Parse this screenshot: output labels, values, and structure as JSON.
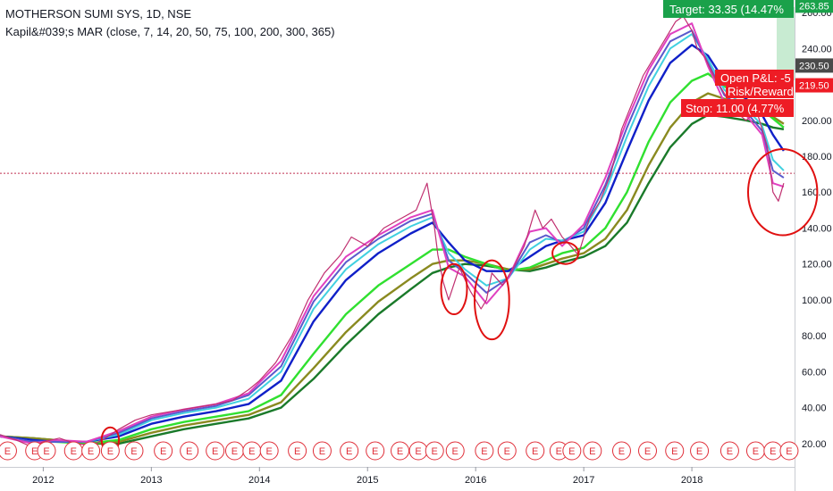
{
  "header": {
    "title": "MOTHERSON SUMI SYS, 1D, NSE",
    "indicator": "Kapil&#039;s MAR (close, 7, 14, 20, 50, 75, 100, 200, 300, 365)"
  },
  "colors": {
    "price": "#c03070",
    "ma7": "#e040c0",
    "ma14": "#5a5acc",
    "ma20": "#40d0e0",
    "ma50": "#1020c8",
    "ma100": "#30e030",
    "ma200": "#8a8a20",
    "ma365": "#1a7a2a",
    "annotation": "#e01010",
    "target_bg": "#1aa14a",
    "stop_bg": "#ee1c25",
    "last_price_bg": "#4a4a4a",
    "earnings": "#e0303a"
  },
  "chart_data": {
    "type": "line",
    "xlim": [
      2011.6,
      2018.95
    ],
    "ylim": [
      7,
      267
    ],
    "yticks": [
      20,
      40,
      60,
      80,
      100,
      120,
      140,
      160,
      180,
      200,
      220,
      240,
      260
    ],
    "ytick_labels": [
      "20.00",
      "40.00",
      "60.00",
      "80.00",
      "100.00",
      "120.00",
      "140.00",
      "160.00",
      "180.00",
      "200.00",
      "220.00",
      "240.00",
      "260.00"
    ],
    "xticks": [
      2012,
      2013,
      2014,
      2015,
      2016,
      2017,
      2018
    ],
    "xtick_labels": [
      "2012",
      "2013",
      "2014",
      "2015",
      "2016",
      "2017",
      "2018"
    ],
    "reference_line": 170.5,
    "price_labels": [
      {
        "text": "263.85",
        "value": 263.85,
        "style": "target"
      },
      {
        "text": "230.50",
        "value": 230.5,
        "style": "last"
      },
      {
        "text": "219.50",
        "value": 219.5,
        "style": "stop"
      }
    ],
    "position_labels": {
      "target": "Target: 33.35 (14.47%",
      "open_pl": "Open P&L: -5",
      "risk_reward": "Risk/Reward",
      "stop": "Stop: 11.00 (4.77%"
    },
    "earnings_marker": "E",
    "earnings_dates": [
      2011.67,
      2011.92,
      2012.03,
      2012.28,
      2012.44,
      2012.62,
      2012.84,
      2013.11,
      2013.35,
      2013.59,
      2013.77,
      2013.93,
      2014.09,
      2014.35,
      2014.58,
      2014.83,
      2015.07,
      2015.3,
      2015.47,
      2015.62,
      2015.81,
      2016.08,
      2016.29,
      2016.55,
      2016.77,
      2016.89,
      2017.08,
      2017.35,
      2017.59,
      2017.84,
      2018.07,
      2018.35,
      2018.59,
      2018.75,
      2018.9
    ],
    "series": [
      {
        "key": "price",
        "x": [
          2011.6,
          2011.75,
          2011.9,
          2012.0,
          2012.15,
          2012.3,
          2012.45,
          2012.55,
          2012.7,
          2012.85,
          2013.0,
          2013.2,
          2013.4,
          2013.6,
          2013.75,
          2013.9,
          2014.0,
          2014.15,
          2014.3,
          2014.45,
          2014.6,
          2014.75,
          2014.85,
          2015.0,
          2015.15,
          2015.3,
          2015.45,
          2015.55,
          2015.62,
          2015.65,
          2015.7,
          2015.75,
          2015.85,
          2015.95,
          2016.05,
          2016.1,
          2016.15,
          2016.25,
          2016.35,
          2016.45,
          2016.55,
          2016.62,
          2016.7,
          2016.8,
          2016.88,
          2016.95,
          2017.05,
          2017.15,
          2017.25,
          2017.35,
          2017.45,
          2017.55,
          2017.65,
          2017.75,
          2017.85,
          2017.92,
          2018.0,
          2018.05,
          2018.12,
          2018.2,
          2018.3,
          2018.4,
          2018.5,
          2018.6,
          2018.7,
          2018.75,
          2018.8,
          2018.85
        ],
        "values": [
          25,
          22,
          18,
          21,
          23,
          20,
          19,
          22,
          28,
          33,
          36,
          38,
          40,
          42,
          44,
          50,
          55,
          65,
          80,
          100,
          115,
          125,
          135,
          130,
          140,
          145,
          150,
          165,
          140,
          125,
          110,
          100,
          118,
          105,
          95,
          100,
          115,
          108,
          118,
          130,
          150,
          140,
          145,
          135,
          130,
          125,
          145,
          155,
          170,
          195,
          210,
          225,
          235,
          245,
          255,
          258,
          250,
          240,
          235,
          225,
          215,
          205,
          200,
          205,
          185,
          160,
          155,
          165
        ]
      },
      {
        "key": "ma7",
        "x": [
          2011.6,
          2011.9,
          2012.1,
          2012.4,
          2012.7,
          2013.0,
          2013.3,
          2013.6,
          2013.9,
          2014.2,
          2014.5,
          2014.8,
          2015.1,
          2015.4,
          2015.6,
          2015.75,
          2015.9,
          2016.1,
          2016.3,
          2016.5,
          2016.65,
          2016.8,
          2017.0,
          2017.2,
          2017.4,
          2017.6,
          2017.8,
          2018.0,
          2018.15,
          2018.3,
          2018.5,
          2018.65,
          2018.75,
          2018.85
        ],
        "values": [
          24,
          20,
          22,
          21,
          27,
          35,
          39,
          42,
          48,
          66,
          102,
          124,
          136,
          146,
          150,
          118,
          113,
          98,
          112,
          138,
          140,
          130,
          142,
          168,
          200,
          228,
          248,
          254,
          230,
          210,
          203,
          192,
          165,
          163
        ]
      },
      {
        "key": "ma14",
        "x": [
          2011.6,
          2011.9,
          2012.1,
          2012.4,
          2012.7,
          2013.0,
          2013.3,
          2013.6,
          2013.9,
          2014.2,
          2014.5,
          2014.8,
          2015.1,
          2015.4,
          2015.6,
          2015.75,
          2015.9,
          2016.1,
          2016.3,
          2016.5,
          2016.65,
          2016.8,
          2017.0,
          2017.2,
          2017.4,
          2017.6,
          2017.8,
          2018.0,
          2018.15,
          2018.3,
          2018.5,
          2018.65,
          2018.75,
          2018.85
        ],
        "values": [
          24,
          21,
          21,
          21,
          26,
          34,
          38,
          41,
          47,
          63,
          99,
          121,
          134,
          144,
          148,
          122,
          115,
          104,
          112,
          132,
          136,
          132,
          140,
          164,
          196,
          224,
          244,
          250,
          232,
          214,
          205,
          194,
          172,
          168
        ]
      },
      {
        "key": "ma20",
        "x": [
          2011.6,
          2011.9,
          2012.1,
          2012.4,
          2012.7,
          2013.0,
          2013.3,
          2013.6,
          2013.9,
          2014.2,
          2014.5,
          2014.8,
          2015.1,
          2015.4,
          2015.6,
          2015.75,
          2015.9,
          2016.1,
          2016.3,
          2016.5,
          2016.65,
          2016.8,
          2017.0,
          2017.2,
          2017.4,
          2017.6,
          2017.8,
          2018.0,
          2018.15,
          2018.3,
          2018.5,
          2018.65,
          2018.75,
          2018.85
        ],
        "values": [
          24,
          21,
          21,
          21,
          25,
          33,
          37,
          40,
          45,
          60,
          95,
          117,
          131,
          141,
          146,
          126,
          117,
          108,
          112,
          128,
          134,
          133,
          138,
          160,
          191,
          219,
          240,
          248,
          234,
          217,
          207,
          197,
          178,
          172
        ]
      },
      {
        "key": "ma50",
        "x": [
          2011.6,
          2011.9,
          2012.1,
          2012.4,
          2012.7,
          2013.0,
          2013.3,
          2013.6,
          2013.9,
          2014.2,
          2014.5,
          2014.8,
          2015.1,
          2015.4,
          2015.6,
          2015.75,
          2015.9,
          2016.1,
          2016.3,
          2016.5,
          2016.65,
          2016.8,
          2017.0,
          2017.2,
          2017.4,
          2017.6,
          2017.8,
          2018.0,
          2018.15,
          2018.3,
          2018.5,
          2018.65,
          2018.75,
          2018.85
        ],
        "values": [
          24,
          22,
          21,
          21,
          24,
          31,
          35,
          38,
          42,
          55,
          88,
          111,
          126,
          137,
          143,
          132,
          122,
          116,
          116,
          124,
          130,
          133,
          136,
          154,
          183,
          211,
          232,
          242,
          236,
          222,
          212,
          203,
          192,
          183
        ]
      },
      {
        "key": "ma100",
        "x": [
          2011.6,
          2011.9,
          2012.1,
          2012.4,
          2012.7,
          2013.0,
          2013.3,
          2013.6,
          2013.9,
          2014.2,
          2014.5,
          2014.8,
          2015.1,
          2015.4,
          2015.6,
          2015.75,
          2015.9,
          2016.1,
          2016.3,
          2016.5,
          2016.65,
          2016.8,
          2017.0,
          2017.2,
          2017.4,
          2017.6,
          2017.8,
          2018.0,
          2018.15,
          2018.3,
          2018.5,
          2018.65,
          2018.75,
          2018.85
        ],
        "values": [
          24,
          22,
          21,
          20,
          22,
          28,
          32,
          35,
          38,
          47,
          70,
          92,
          108,
          120,
          128,
          128,
          124,
          120,
          116,
          118,
          122,
          126,
          129,
          140,
          160,
          188,
          210,
          222,
          226,
          219,
          212,
          206,
          201,
          196
        ]
      },
      {
        "key": "ma200",
        "x": [
          2011.6,
          2011.9,
          2012.1,
          2012.4,
          2012.7,
          2013.0,
          2013.3,
          2013.6,
          2013.9,
          2014.2,
          2014.5,
          2014.8,
          2015.1,
          2015.4,
          2015.6,
          2015.75,
          2015.9,
          2016.1,
          2016.3,
          2016.5,
          2016.65,
          2016.8,
          2017.0,
          2017.2,
          2017.4,
          2017.6,
          2017.8,
          2018.0,
          2018.15,
          2018.3,
          2018.5,
          2018.65,
          2018.75,
          2018.85
        ],
        "values": [
          24,
          23,
          22,
          20,
          21,
          26,
          30,
          33,
          36,
          43,
          62,
          82,
          99,
          112,
          120,
          122,
          122,
          120,
          117,
          117,
          120,
          123,
          126,
          134,
          150,
          175,
          196,
          210,
          215,
          212,
          208,
          205,
          202,
          198
        ]
      },
      {
        "key": "ma365",
        "x": [
          2011.6,
          2011.9,
          2012.1,
          2012.4,
          2012.7,
          2013.0,
          2013.3,
          2013.6,
          2013.9,
          2014.2,
          2014.5,
          2014.8,
          2015.1,
          2015.4,
          2015.6,
          2015.75,
          2015.9,
          2016.1,
          2016.3,
          2016.5,
          2016.65,
          2016.8,
          2017.0,
          2017.2,
          2017.4,
          2017.6,
          2017.8,
          2018.0,
          2018.15,
          2018.3,
          2018.5,
          2018.65,
          2018.75,
          2018.85
        ],
        "values": [
          24,
          23,
          22,
          20,
          20,
          24,
          28,
          31,
          34,
          40,
          56,
          75,
          92,
          106,
          115,
          118,
          120,
          119,
          117,
          116,
          118,
          121,
          124,
          130,
          143,
          165,
          185,
          198,
          203,
          202,
          200,
          198,
          196,
          195
        ]
      }
    ],
    "annotations": [
      {
        "type": "ellipse",
        "cx": 2012.62,
        "cy": 22,
        "rx_years": 0.08,
        "ry_value": 7
      },
      {
        "type": "ellipse",
        "cx": 2015.8,
        "cy": 106,
        "rx_years": 0.12,
        "ry_value": 14
      },
      {
        "type": "ellipse",
        "cx": 2016.15,
        "cy": 100,
        "rx_years": 0.16,
        "ry_value": 22
      },
      {
        "type": "ellipse",
        "cx": 2016.83,
        "cy": 126,
        "rx_years": 0.12,
        "ry_value": 6
      },
      {
        "type": "ellipse",
        "cx": 2018.84,
        "cy": 160,
        "rx_years": 0.32,
        "ry_value": 24
      }
    ]
  }
}
